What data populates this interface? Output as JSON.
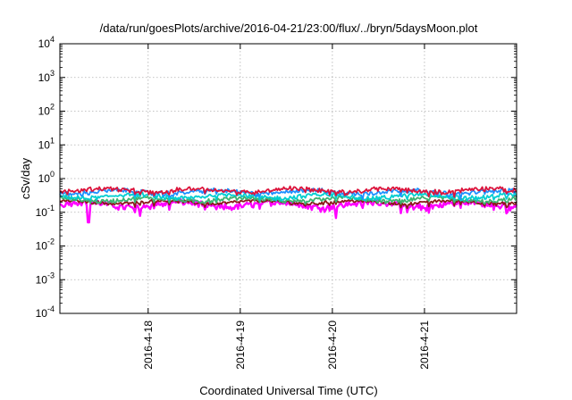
{
  "chart_data": {
    "type": "line",
    "title": "/data/run/goesPlots/archive/2016-04-21/23:00/flux/../bryn/5daysMoon.plot",
    "xlabel": "Coordinated Universal Time (UTC)",
    "ylabel": "cSv/day",
    "yscale": "log",
    "ylim": [
      0.0001,
      10000
    ],
    "y_ticks": [
      {
        "value": 0.0001,
        "base": "10",
        "exp": "-4"
      },
      {
        "value": 0.001,
        "base": "10",
        "exp": "-3"
      },
      {
        "value": 0.01,
        "base": "10",
        "exp": "-2"
      },
      {
        "value": 0.1,
        "base": "10",
        "exp": "-1"
      },
      {
        "value": 1,
        "base": "10",
        "exp": "0"
      },
      {
        "value": 10,
        "base": "10",
        "exp": "1"
      },
      {
        "value": 100,
        "base": "10",
        "exp": "2"
      },
      {
        "value": 1000,
        "base": "10",
        "exp": "3"
      },
      {
        "value": 10000,
        "base": "10",
        "exp": "4"
      }
    ],
    "xlim": [
      "2016-04-17 01:00",
      "2016-04-22 00:00"
    ],
    "x_ticks": [
      {
        "value": "2016-04-18 00:00",
        "label": "2016-4-18"
      },
      {
        "value": "2016-04-19 00:00",
        "label": "2016-4-19"
      },
      {
        "value": "2016-04-20 00:00",
        "label": "2016-4-20"
      },
      {
        "value": "2016-04-21 00:00",
        "label": "2016-4-21"
      }
    ],
    "grid": true,
    "legend": "none",
    "series": [
      {
        "color": "#ff00ff",
        "base": 0.17,
        "amp": 0.03,
        "dips": 0.45,
        "noise": 0.18
      },
      {
        "color": "#8b1a1a",
        "base": 0.2,
        "amp": 0.02,
        "dips": 0.25,
        "noise": 0.08
      },
      {
        "color": "#3cb371",
        "base": 0.24,
        "amp": 0.03,
        "dips": 0.2,
        "noise": 0.08
      },
      {
        "color": "#00ced1",
        "base": 0.3,
        "amp": 0.04,
        "dips": 0.2,
        "noise": 0.1
      },
      {
        "color": "#1e90ff",
        "base": 0.4,
        "amp": 0.05,
        "dips": 0.3,
        "noise": 0.12
      },
      {
        "color": "#dc143c",
        "base": 0.45,
        "amp": 0.06,
        "dips": 0.25,
        "noise": 0.12
      }
    ]
  }
}
